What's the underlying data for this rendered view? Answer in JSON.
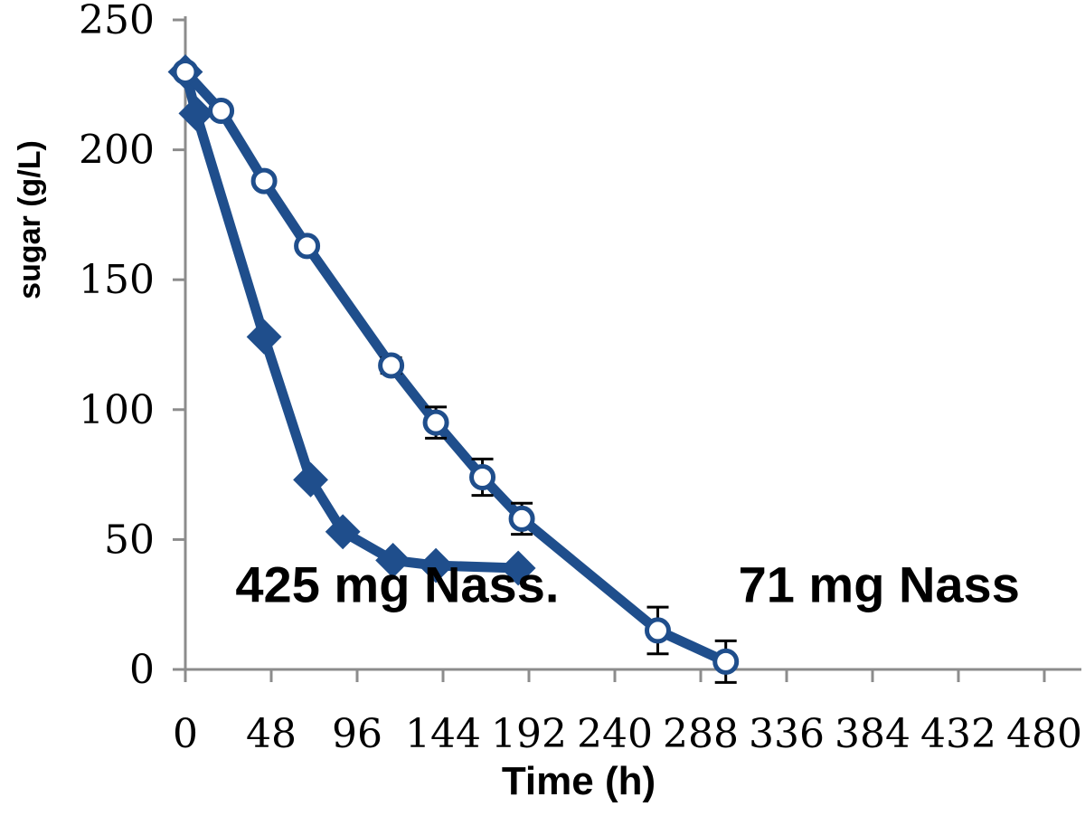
{
  "chart_data": {
    "type": "line",
    "xlabel": "Time (h)",
    "ylabel": "sugar (g/L)",
    "xlim": [
      0,
      480
    ],
    "ylim": [
      0,
      250
    ],
    "x_ticks": [
      0,
      48,
      96,
      144,
      192,
      240,
      288,
      336,
      384,
      432,
      480
    ],
    "y_ticks": [
      0,
      50,
      100,
      150,
      200,
      250
    ],
    "grid": false,
    "color": "#1f4e8c",
    "series": [
      {
        "marker": "diamond-filled",
        "x": [
          0,
          6,
          44,
          70,
          88,
          116,
          140,
          186
        ],
        "y": [
          230,
          214,
          128,
          73,
          53,
          42,
          40,
          39
        ]
      },
      {
        "marker": "circle-open",
        "x": [
          0,
          20,
          44,
          68,
          115,
          140,
          166,
          188,
          264,
          302
        ],
        "y": [
          230,
          215,
          188,
          163,
          117,
          95,
          74,
          58,
          15,
          3
        ],
        "err": [
          0,
          0,
          0,
          0,
          3,
          6,
          7,
          6,
          9,
          8
        ]
      }
    ],
    "annotations": [
      {
        "text": "425 mg Nass.",
        "x": 28,
        "y": 26
      },
      {
        "text": "71 mg Nass",
        "x": 309,
        "y": 26
      }
    ]
  }
}
